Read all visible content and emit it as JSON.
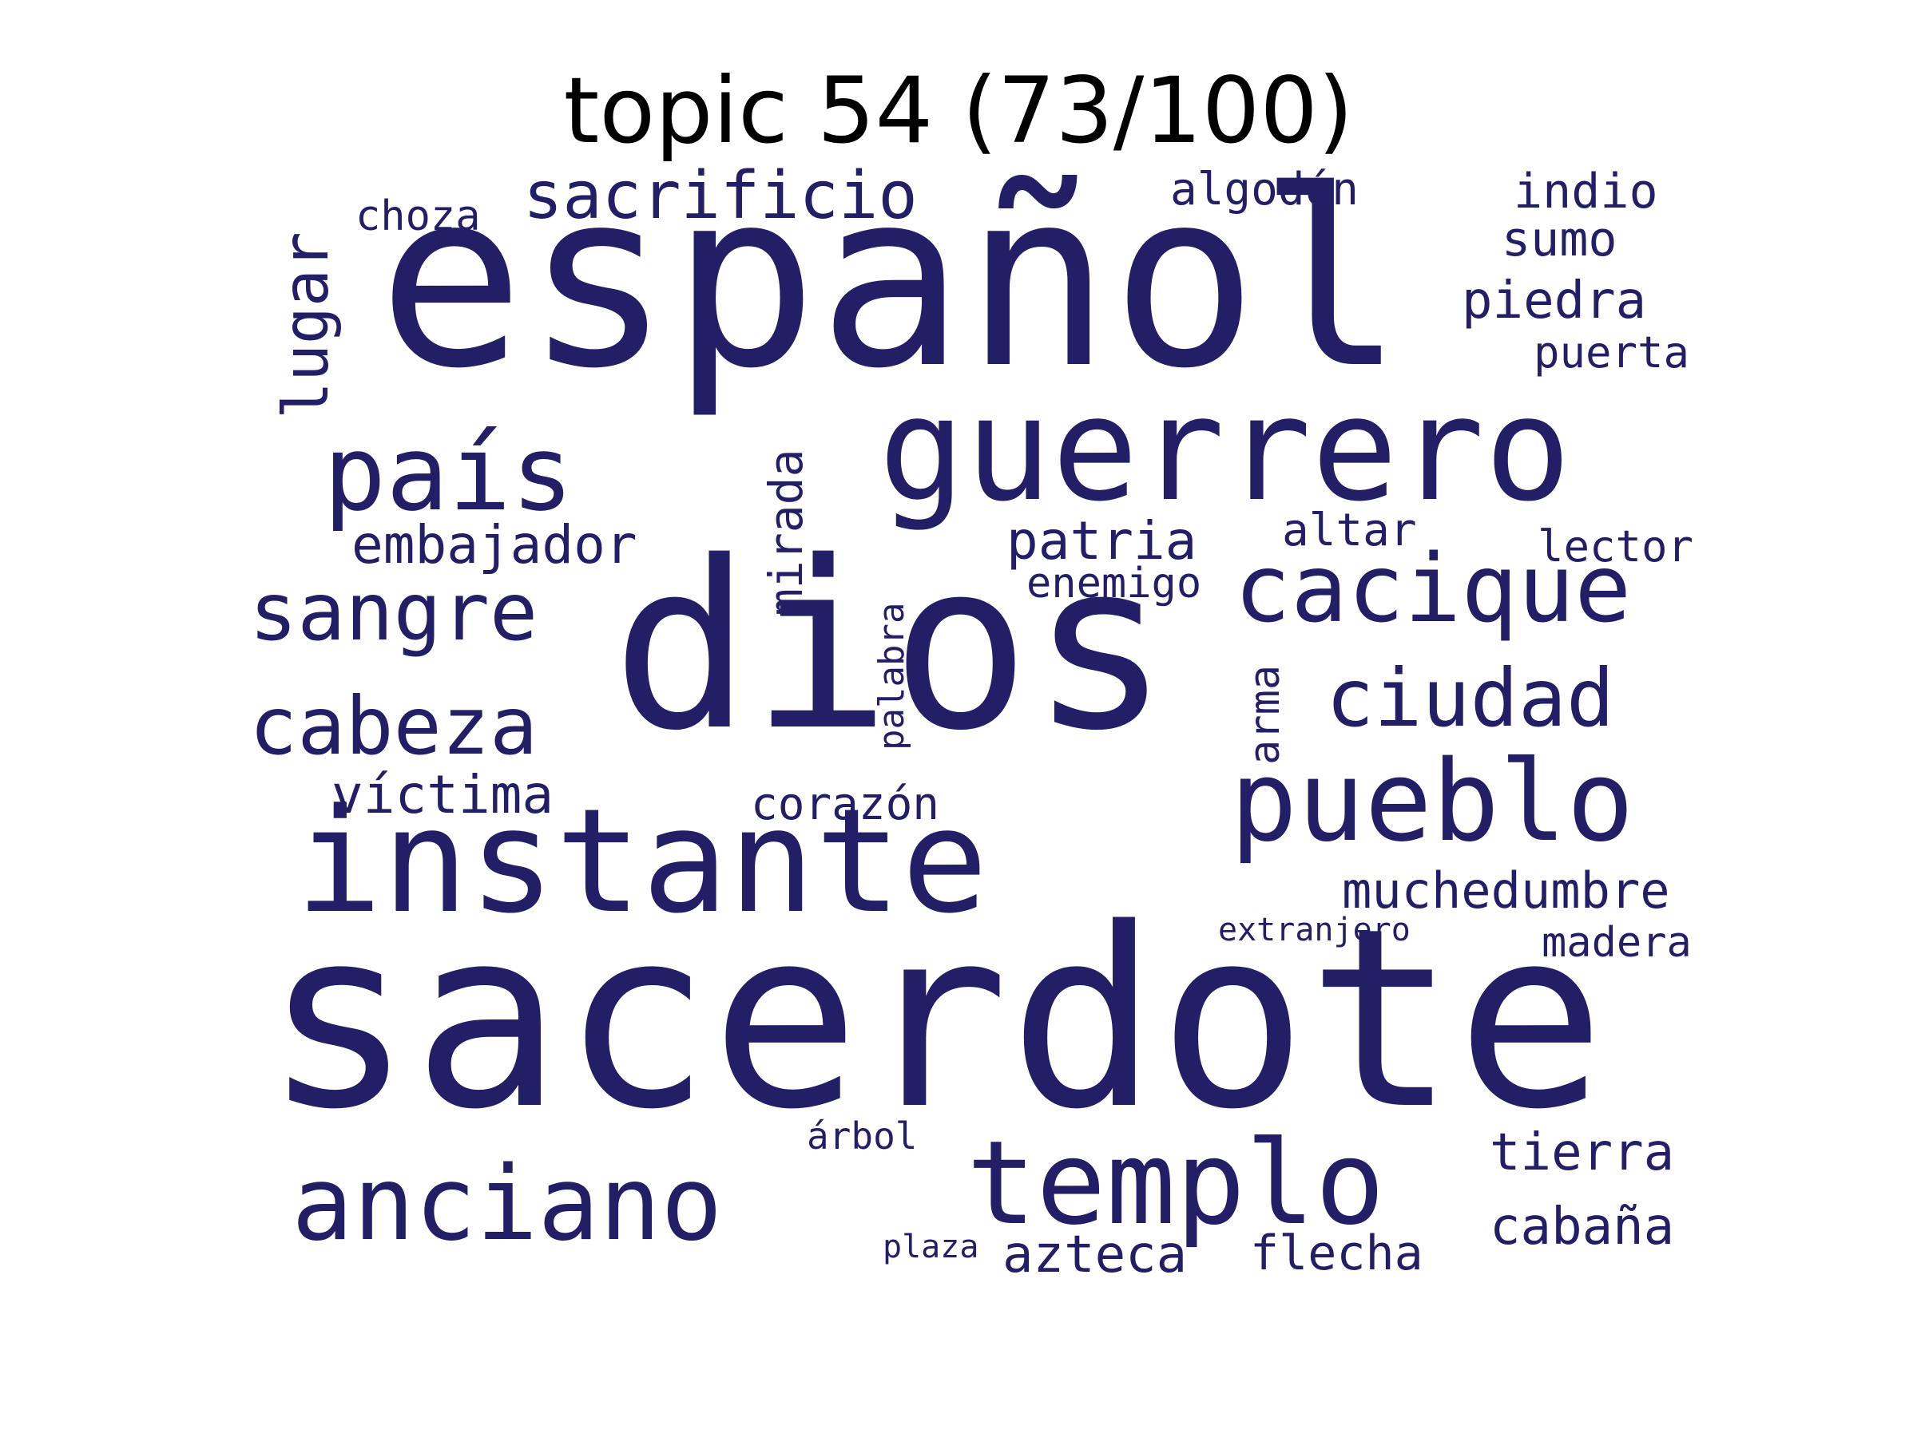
{
  "title": "topic 54 (73/100)",
  "word_color": "#231f66",
  "words": [
    {
      "key": "espanol",
      "text": "español",
      "orientation": "horizontal"
    },
    {
      "key": "sacerdote",
      "text": "sacerdote",
      "orientation": "horizontal"
    },
    {
      "key": "dios",
      "text": "dios",
      "orientation": "horizontal"
    },
    {
      "key": "instante",
      "text": "instante",
      "orientation": "horizontal"
    },
    {
      "key": "guerrero",
      "text": "guerrero",
      "orientation": "horizontal"
    },
    {
      "key": "templo",
      "text": "templo",
      "orientation": "horizontal"
    },
    {
      "key": "pueblo",
      "text": "pueblo",
      "orientation": "horizontal"
    },
    {
      "key": "anciano",
      "text": "anciano",
      "orientation": "horizontal"
    },
    {
      "key": "pais",
      "text": "país",
      "orientation": "horizontal"
    },
    {
      "key": "cacique",
      "text": "cacique",
      "orientation": "horizontal"
    },
    {
      "key": "sangre",
      "text": "sangre",
      "orientation": "horizontal"
    },
    {
      "key": "cabeza",
      "text": "cabeza",
      "orientation": "horizontal"
    },
    {
      "key": "ciudad",
      "text": "ciudad",
      "orientation": "horizontal"
    },
    {
      "key": "sacrificio",
      "text": "sacrificio",
      "orientation": "horizontal"
    },
    {
      "key": "lugar",
      "text": "lugar",
      "orientation": "vertical"
    },
    {
      "key": "embajador",
      "text": "embajador",
      "orientation": "horizontal"
    },
    {
      "key": "patria",
      "text": "patria",
      "orientation": "horizontal"
    },
    {
      "key": "victima",
      "text": "víctima",
      "orientation": "horizontal"
    },
    {
      "key": "muchedumbre",
      "text": "muchedumbre",
      "orientation": "horizontal"
    },
    {
      "key": "tierra",
      "text": "tierra",
      "orientation": "horizontal"
    },
    {
      "key": "cabana",
      "text": "cabaña",
      "orientation": "horizontal"
    },
    {
      "key": "azteca",
      "text": "azteca",
      "orientation": "horizontal"
    },
    {
      "key": "flecha",
      "text": "flecha",
      "orientation": "horizontal"
    },
    {
      "key": "piedra",
      "text": "piedra",
      "orientation": "horizontal"
    },
    {
      "key": "indio",
      "text": "indio",
      "orientation": "horizontal"
    },
    {
      "key": "mirada",
      "text": "mirada",
      "orientation": "vertical"
    },
    {
      "key": "sumo",
      "text": "sumo",
      "orientation": "horizontal"
    },
    {
      "key": "altar",
      "text": "altar",
      "orientation": "horizontal"
    },
    {
      "key": "algodon",
      "text": "algodón",
      "orientation": "horizontal"
    },
    {
      "key": "corazon",
      "text": "corazón",
      "orientation": "horizontal"
    },
    {
      "key": "lector",
      "text": "lector",
      "orientation": "horizontal"
    },
    {
      "key": "puerta",
      "text": "puerta",
      "orientation": "horizontal"
    },
    {
      "key": "arma",
      "text": "arma",
      "orientation": "vertical"
    },
    {
      "key": "enemigo",
      "text": "enemigo",
      "orientation": "horizontal"
    },
    {
      "key": "madera",
      "text": "madera",
      "orientation": "horizontal"
    },
    {
      "key": "choza",
      "text": "choza",
      "orientation": "horizontal"
    },
    {
      "key": "palabra",
      "text": "palabra",
      "orientation": "vertical"
    },
    {
      "key": "arbol",
      "text": "árbol",
      "orientation": "horizontal"
    },
    {
      "key": "extranjero",
      "text": "extranjero",
      "orientation": "horizontal"
    },
    {
      "key": "plaza",
      "text": "plaza",
      "orientation": "horizontal"
    }
  ]
}
